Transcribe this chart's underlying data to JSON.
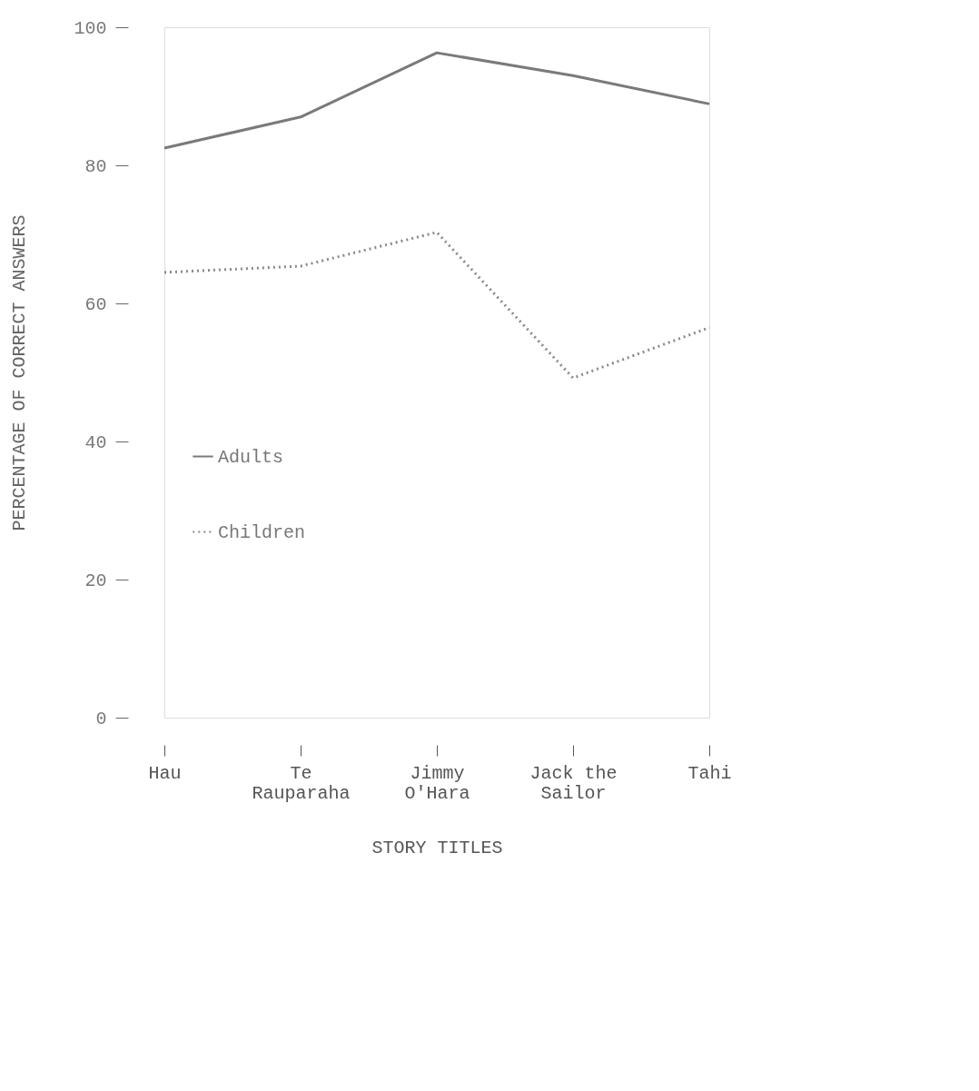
{
  "chart_data": {
    "type": "line",
    "xlabel": "STORY TITLES",
    "ylabel": "PERCENTAGE OF CORRECT ANSWERS",
    "categories": [
      "Hau",
      "Te Rauparaha",
      "Jimmy O'Hara",
      "Jack the Sailor",
      "Tahi"
    ],
    "series": [
      {
        "name": "Adults",
        "color": "#7a7a7a",
        "line_style": "solid",
        "values": [
          82.5,
          87,
          96.3,
          93,
          88.9
        ]
      },
      {
        "name": "Children",
        "color": "#8a8a8a",
        "line_style": "dotted",
        "values": [
          64.5,
          65.4,
          70.3,
          49.2,
          56.5
        ]
      }
    ],
    "ylim": [
      0,
      100
    ],
    "yticks": [
      0,
      20,
      40,
      60,
      80,
      100
    ],
    "grid": false,
    "legend": "left",
    "marker": "none"
  }
}
